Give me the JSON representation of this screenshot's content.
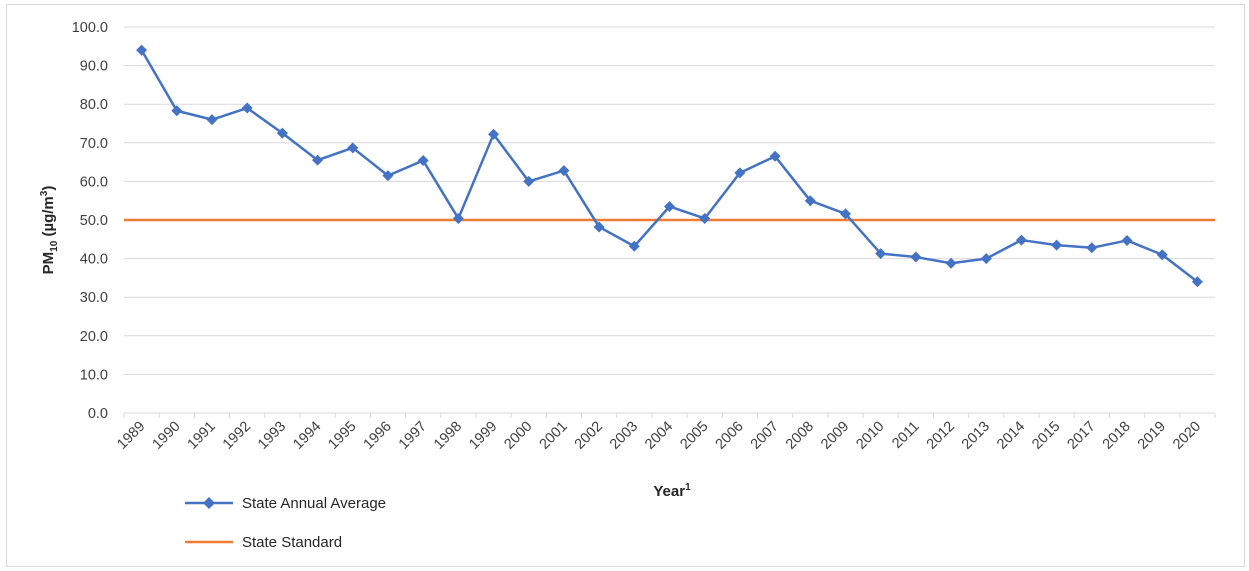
{
  "chart_data": {
    "type": "line",
    "title": "",
    "xlabel": "Year",
    "xlabel_sup": "1",
    "ylabel": "PM",
    "ylabel_sub": "10",
    "ylabel_unit": " (µg/m",
    "ylabel_unit_sup": "3",
    "ylabel_close": ")",
    "ylim": [
      0,
      100
    ],
    "yticks": [
      "0.0",
      "10.0",
      "20.0",
      "30.0",
      "40.0",
      "50.0",
      "60.0",
      "70.0",
      "80.0",
      "90.0",
      "100.0"
    ],
    "grid": true,
    "legend_position": "bottom-left",
    "categories": [
      "1989",
      "1990",
      "1991",
      "1992",
      "1993",
      "1994",
      "1995",
      "1996",
      "1997",
      "1998",
      "1999",
      "2000",
      "2001",
      "2002",
      "2003",
      "2004",
      "2005",
      "2006",
      "2007",
      "2008",
      "2009",
      "2010",
      "2011",
      "2012",
      "2013",
      "2014",
      "2015",
      "2017",
      "2018",
      "2019",
      "2020"
    ],
    "series": [
      {
        "name": "State Annual Average",
        "color": "#4472c4",
        "marker": "diamond",
        "values": [
          94.0,
          78.3,
          76.0,
          79.0,
          72.5,
          65.5,
          68.7,
          61.5,
          65.4,
          50.4,
          72.2,
          60.0,
          62.8,
          48.2,
          43.2,
          53.5,
          50.4,
          62.2,
          66.5,
          55.0,
          51.6,
          41.3,
          40.4,
          38.8,
          40.0,
          44.8,
          43.5,
          42.8,
          44.7,
          41.0,
          34.0
        ]
      },
      {
        "name": "State Standard",
        "color": "#ed7d31",
        "marker": "none",
        "values": [
          50,
          50,
          50,
          50,
          50,
          50,
          50,
          50,
          50,
          50,
          50,
          50,
          50,
          50,
          50,
          50,
          50,
          50,
          50,
          50,
          50,
          50,
          50,
          50,
          50,
          50,
          50,
          50,
          50,
          50,
          50
        ]
      }
    ]
  }
}
